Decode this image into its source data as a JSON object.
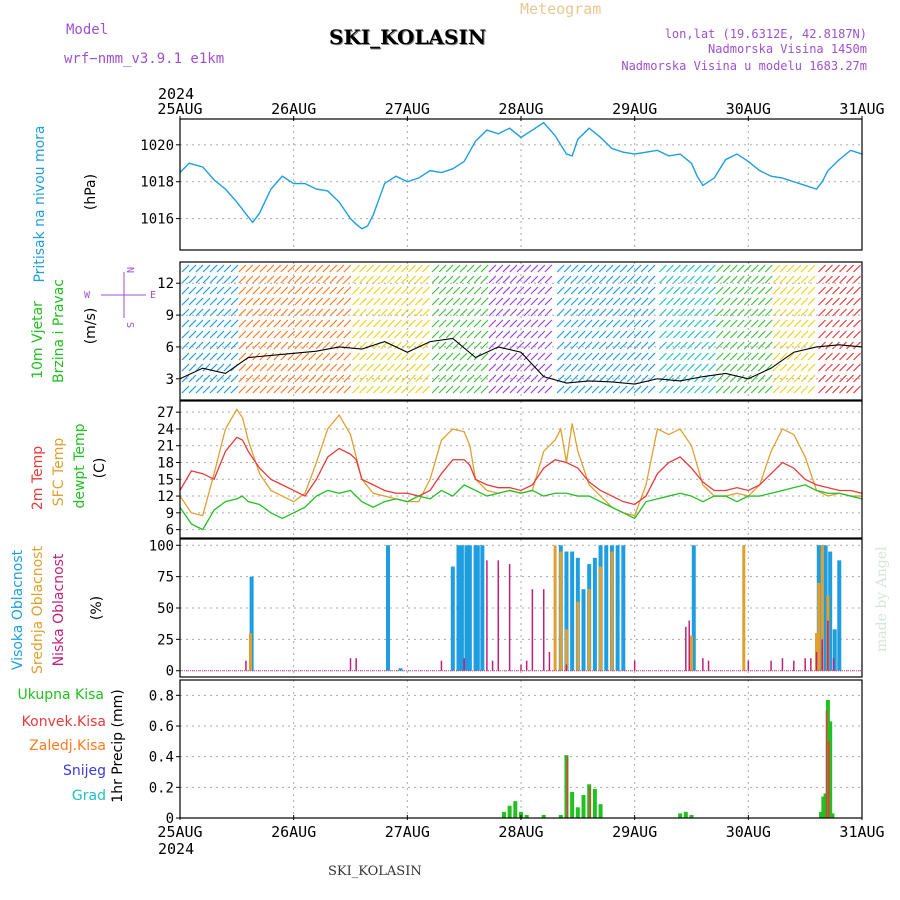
{
  "header": {
    "model_label": "Model",
    "model_name": "wrf−nmm_v3.9.1  e1km",
    "station": "SKI_KOLASIN",
    "meteogram": "Meteogram",
    "lonlat": "lon,lat (19.6312E, 42.8187N)",
    "altitude": "Nadmorska Visina 1450m",
    "model_altitude": "Nadmorska Visina u modelu 1683.27m",
    "year_top": "2024",
    "year_bottom": "2024",
    "footer_station": "SKI_KOLASIN",
    "credit": "made by Angel"
  },
  "colors": {
    "pressure": "#1e9ee0",
    "temp2m": "#e83a3a",
    "sfc": "#e0a030",
    "dewpt": "#22c022",
    "high_cloud": "#1e9ee0",
    "mid_cloud": "#e0a030",
    "low_cloud": "#c0207a",
    "purple": "#a050d0",
    "total_precip": "#22c022",
    "conv_precip": "#e83a3a",
    "frozen_precip": "#ff7a20",
    "snow": "#3a3ae0",
    "hail": "#20c0c0"
  },
  "chart_data": [
    {
      "type": "line",
      "title": "Pritisak na nivou mora",
      "ylabel": "(hPa)",
      "yticks": [
        1016,
        1018,
        1020
      ],
      "ylim": [
        1014.3,
        1021.4
      ],
      "x_unit": "days since 25AUG 00Z",
      "series": [
        {
          "name": "Pritisak na nivou mora",
          "x": [
            0,
            0.08,
            0.2,
            0.3,
            0.4,
            0.5,
            0.6,
            0.64,
            0.7,
            0.8,
            0.9,
            1.0,
            1.1,
            1.2,
            1.3,
            1.4,
            1.5,
            1.55,
            1.6,
            1.65,
            1.7,
            1.8,
            1.9,
            2.0,
            2.1,
            2.2,
            2.3,
            2.4,
            2.5,
            2.6,
            2.7,
            2.8,
            2.9,
            3.0,
            3.1,
            3.2,
            3.3,
            3.4,
            3.45,
            3.5,
            3.6,
            3.7,
            3.8,
            3.9,
            4.0,
            4.1,
            4.2,
            4.3,
            4.4,
            4.5,
            4.55,
            4.6,
            4.7,
            4.8,
            4.9,
            5.0,
            5.1,
            5.2,
            5.3,
            5.4,
            5.5,
            5.6,
            5.65,
            5.7,
            5.8,
            5.9,
            6.0
          ],
          "values": [
            1018.5,
            1019.0,
            1018.8,
            1018.1,
            1017.6,
            1016.9,
            1016.1,
            1015.8,
            1016.3,
            1017.6,
            1018.3,
            1017.9,
            1017.9,
            1017.6,
            1017.5,
            1016.9,
            1016.0,
            1015.7,
            1015.45,
            1015.6,
            1016.2,
            1017.9,
            1018.3,
            1018.0,
            1018.2,
            1018.6,
            1018.5,
            1018.7,
            1019.1,
            1020.2,
            1020.8,
            1020.6,
            1020.9,
            1020.4,
            1020.8,
            1021.2,
            1020.5,
            1019.5,
            1019.4,
            1020.3,
            1020.9,
            1020.4,
            1019.8,
            1019.6,
            1019.5,
            1019.6,
            1019.7,
            1019.4,
            1019.5,
            1019.0,
            1018.3,
            1017.8,
            1018.2,
            1019.2,
            1019.5,
            1019.1,
            1018.6,
            1018.3,
            1018.2,
            1018.0,
            1017.8,
            1017.6,
            1018.0,
            1018.6,
            1019.2,
            1019.7,
            1019.5
          ]
        }
      ]
    },
    {
      "type": "line",
      "title": "10m Vjetar Brzina i Pravac",
      "ylabel": "(m/s)",
      "yticks": [
        3,
        6,
        9,
        12
      ],
      "ylim": [
        1.0,
        14.0
      ],
      "compass": {
        "north": "N",
        "south": "S",
        "east": "E",
        "west": "W"
      },
      "series": [
        {
          "name": "brzina",
          "x": [
            0,
            0.2,
            0.4,
            0.6,
            0.8,
            1.0,
            1.2,
            1.4,
            1.6,
            1.8,
            2.0,
            2.2,
            2.4,
            2.6,
            2.8,
            3.0,
            3.2,
            3.4,
            3.6,
            3.8,
            4.0,
            4.2,
            4.4,
            4.6,
            4.8,
            5.0,
            5.2,
            5.4,
            5.6,
            5.8,
            6.0
          ],
          "values": [
            3.0,
            4.0,
            3.5,
            5.0,
            5.2,
            5.4,
            5.6,
            6.0,
            5.8,
            6.5,
            5.5,
            6.5,
            6.8,
            5.0,
            6.0,
            5.5,
            3.2,
            2.6,
            2.8,
            2.7,
            2.5,
            3.0,
            2.8,
            3.2,
            3.5,
            3.0,
            4.0,
            5.5,
            6.0,
            6.2,
            6.0
          ]
        }
      ],
      "barb_bands": [
        {
          "from": 0.0,
          "to": 0.5,
          "color": "#1e9ee0"
        },
        {
          "from": 0.5,
          "to": 1.5,
          "color": "#ff7a20"
        },
        {
          "from": 1.5,
          "to": 2.2,
          "color": "#f0d020"
        },
        {
          "from": 2.2,
          "to": 2.7,
          "color": "#40c040"
        },
        {
          "from": 2.7,
          "to": 3.3,
          "color": "#9a40e0"
        },
        {
          "from": 3.3,
          "to": 4.2,
          "color": "#1e9ee0"
        },
        {
          "from": 4.2,
          "to": 4.7,
          "color": "#20c0c0"
        },
        {
          "from": 4.7,
          "to": 5.2,
          "color": "#40c040"
        },
        {
          "from": 5.2,
          "to": 5.6,
          "color": "#f0d020"
        },
        {
          "from": 5.6,
          "to": 6.0,
          "color": "#e83a3a"
        }
      ]
    },
    {
      "type": "line",
      "title": "2m Temp / SFC Temp / dewpt Temp",
      "ylabel": "(C)",
      "yticks": [
        6,
        9,
        12,
        15,
        18,
        21,
        24,
        27
      ],
      "ylim": [
        4.5,
        29.0
      ],
      "series": [
        {
          "name": "2m Temp",
          "x": [
            0,
            0.1,
            0.2,
            0.3,
            0.4,
            0.5,
            0.55,
            0.6,
            0.7,
            0.8,
            0.9,
            1.0,
            1.1,
            1.2,
            1.3,
            1.4,
            1.5,
            1.55,
            1.6,
            1.7,
            1.8,
            1.9,
            2.0,
            2.1,
            2.2,
            2.3,
            2.4,
            2.5,
            2.55,
            2.6,
            2.7,
            2.8,
            2.9,
            3.0,
            3.1,
            3.2,
            3.3,
            3.4,
            3.5,
            3.6,
            3.7,
            3.8,
            3.9,
            4.0,
            4.1,
            4.2,
            4.3,
            4.4,
            4.5,
            4.6,
            4.7,
            4.8,
            4.9,
            5.0,
            5.1,
            5.2,
            5.3,
            5.4,
            5.5,
            5.6,
            5.7,
            5.8,
            5.9,
            6.0
          ],
          "values": [
            13,
            16.5,
            16,
            15,
            20,
            22.5,
            22,
            20,
            17,
            15,
            14,
            13,
            12,
            15,
            19,
            20.5,
            19.5,
            18.5,
            15,
            14,
            13,
            12.5,
            12.5,
            12,
            13,
            16,
            18.5,
            18.5,
            17.5,
            15,
            14,
            13.5,
            13.5,
            13,
            14,
            17,
            18.5,
            18,
            17,
            14.5,
            13,
            12,
            11,
            10.5,
            12,
            16,
            18,
            19,
            17,
            14.5,
            13,
            13,
            13.5,
            13,
            14,
            16,
            18,
            17,
            15,
            14,
            13.5,
            13,
            13,
            12.5
          ]
        },
        {
          "name": "SFC Temp",
          "x": [
            0,
            0.1,
            0.2,
            0.3,
            0.4,
            0.5,
            0.55,
            0.6,
            0.7,
            0.8,
            0.9,
            1.0,
            1.1,
            1.2,
            1.3,
            1.4,
            1.5,
            1.55,
            1.6,
            1.7,
            1.8,
            1.9,
            2.0,
            2.1,
            2.2,
            2.3,
            2.4,
            2.5,
            2.55,
            2.6,
            2.7,
            2.8,
            2.9,
            3.0,
            3.1,
            3.2,
            3.3,
            3.35,
            3.4,
            3.45,
            3.5,
            3.6,
            3.7,
            3.8,
            3.9,
            4.0,
            4.1,
            4.2,
            4.3,
            4.4,
            4.5,
            4.6,
            4.7,
            4.8,
            4.9,
            5.0,
            5.1,
            5.2,
            5.3,
            5.4,
            5.5,
            5.6,
            5.7,
            5.8,
            5.9,
            6.0
          ],
          "values": [
            12,
            9,
            8.5,
            16,
            24,
            27.5,
            26,
            22,
            16,
            13,
            12,
            11,
            12.5,
            18,
            24,
            26.5,
            23,
            19,
            15,
            12.5,
            12,
            11.5,
            11,
            11,
            15,
            22,
            24,
            23.5,
            21,
            15,
            13,
            12.5,
            13,
            12.5,
            13,
            20,
            22,
            24,
            18,
            25,
            20,
            14,
            12,
            10,
            9,
            8.5,
            14,
            24,
            23,
            24,
            21,
            14,
            12,
            12,
            12.5,
            12,
            14,
            20,
            24,
            23,
            19,
            13,
            12,
            12.5,
            12,
            12
          ]
        },
        {
          "name": "dewpt Temp",
          "x": [
            0,
            0.1,
            0.2,
            0.3,
            0.4,
            0.5,
            0.55,
            0.6,
            0.7,
            0.8,
            0.9,
            1.0,
            1.1,
            1.2,
            1.3,
            1.4,
            1.5,
            1.6,
            1.7,
            1.8,
            1.9,
            2.0,
            2.1,
            2.2,
            2.3,
            2.4,
            2.5,
            2.6,
            2.7,
            2.8,
            2.9,
            3.0,
            3.1,
            3.2,
            3.3,
            3.4,
            3.5,
            3.6,
            3.7,
            3.8,
            3.9,
            4.0,
            4.1,
            4.2,
            4.3,
            4.4,
            4.5,
            4.6,
            4.7,
            4.8,
            4.9,
            5.0,
            5.1,
            5.2,
            5.3,
            5.4,
            5.5,
            5.6,
            5.7,
            5.8,
            5.9,
            6.0
          ],
          "values": [
            10,
            7,
            6,
            9.5,
            11,
            11.5,
            12,
            11,
            10.5,
            9,
            8,
            9,
            10,
            12,
            13,
            12.5,
            13,
            11,
            10,
            11,
            11.5,
            11,
            12,
            11.5,
            13,
            12,
            14,
            13,
            12,
            12.5,
            13,
            12.5,
            13,
            12,
            12.5,
            12.5,
            12,
            12,
            11,
            10,
            9,
            8,
            11,
            11.5,
            12,
            12.5,
            12,
            11,
            12,
            12,
            11,
            12,
            12,
            12.5,
            13,
            13.5,
            14,
            13,
            12.5,
            12.5,
            12,
            11.5
          ]
        }
      ]
    },
    {
      "type": "bar",
      "title": "Visoka Oblacnost / Srednja Oblacnost / Niska Oblacnost",
      "ylabel": "(%)",
      "yticks": [
        0,
        25,
        50,
        75,
        100
      ],
      "ylim": [
        -5,
        105
      ],
      "series": [
        {
          "name": "Visoka Oblacnost",
          "x": [
            0.63,
            1.83,
            1.94,
            2.4,
            2.45,
            2.48,
            2.52,
            2.55,
            2.6,
            2.62,
            2.66,
            3.35,
            3.4,
            3.45,
            3.5,
            3.55,
            3.6,
            3.65,
            3.7,
            3.75,
            3.8,
            3.85,
            3.9,
            4.52,
            5.62,
            5.63,
            5.68,
            5.72,
            5.76,
            5.8
          ],
          "values": [
            75,
            100,
            2,
            83,
            100,
            100,
            100,
            100,
            100,
            100,
            100,
            100,
            95,
            95,
            90,
            65,
            85,
            90,
            100,
            100,
            100,
            100,
            100,
            100,
            100,
            100,
            100,
            95,
            33,
            88
          ]
        },
        {
          "name": "Srednja Oblacnost",
          "x": [
            0.62,
            3.3,
            3.35,
            3.4,
            3.5,
            3.6,
            3.7,
            3.8,
            4.5,
            4.96,
            5.6,
            5.62,
            5.65,
            5.7
          ],
          "values": [
            30,
            100,
            95,
            33,
            55,
            65,
            83,
            95,
            28,
            100,
            30,
            70,
            100,
            60
          ]
        },
        {
          "name": "Niska Oblacnost",
          "x": [
            0.58,
            1.5,
            1.55,
            2.3,
            2.5,
            2.7,
            2.75,
            2.8,
            2.9,
            3.0,
            3.05,
            3.1,
            3.2,
            3.25,
            3.4,
            4.0,
            4.45,
            4.48,
            4.6,
            4.65,
            5.0,
            5.2,
            5.3,
            5.4,
            5.5,
            5.55,
            5.6,
            5.65,
            5.7,
            5.75
          ],
          "values": [
            8,
            10,
            10,
            8,
            10,
            88,
            8,
            88,
            85,
            5,
            8,
            65,
            65,
            15,
            5,
            8,
            35,
            40,
            10,
            8,
            8,
            8,
            10,
            8,
            10,
            10,
            15,
            25,
            40,
            10
          ]
        }
      ]
    },
    {
      "type": "bar",
      "title": "1hr Precip",
      "ylabel": "1hr Precip (mm)",
      "yticks": [
        0,
        0.2,
        0.4,
        0.6,
        0.8
      ],
      "ylim": [
        0,
        0.9
      ],
      "series": [
        {
          "name": "Ukupna Kisa",
          "x": [
            2.85,
            2.9,
            2.95,
            3.0,
            3.05,
            3.2,
            3.35,
            3.4,
            3.45,
            3.5,
            3.55,
            3.6,
            3.65,
            3.7,
            4.4,
            4.45,
            4.5,
            5.64,
            5.66,
            5.68,
            5.7,
            5.72,
            5.74
          ],
          "values": [
            0.04,
            0.08,
            0.11,
            0.04,
            0.02,
            0.02,
            0.02,
            0.41,
            0.17,
            0.07,
            0.15,
            0.22,
            0.19,
            0.09,
            0.03,
            0.04,
            0.02,
            0.04,
            0.14,
            0.16,
            0.77,
            0.63,
            0.03
          ]
        },
        {
          "name": "Konvek.Kisa",
          "x": [
            3.41,
            3.61,
            5.69,
            5.71
          ],
          "values": [
            0.4,
            0.2,
            0.7,
            0.5
          ]
        },
        {
          "name": "Zaledj.Kisa",
          "x": [],
          "values": []
        },
        {
          "name": "Snijeg",
          "x": [],
          "values": []
        },
        {
          "name": "Grad",
          "x": [],
          "values": []
        }
      ]
    }
  ],
  "axis": {
    "date_labels": [
      "25AUG",
      "26AUG",
      "27AUG",
      "28AUG",
      "29AUG",
      "30AUG",
      "31AUG"
    ]
  },
  "labels": {
    "pressure_title": "Pritisak na nivou mora",
    "pressure_unit": "(hPa)",
    "wind_title_1": "10m Vjetar",
    "wind_title_2": "Brzina i Pravac",
    "wind_unit": "(m/s)",
    "temp_2m": "2m Temp",
    "temp_sfc": "SFC Temp",
    "temp_dew": "dewpt Temp",
    "temp_unit": "(C)",
    "cloud_high": "Visoka Oblacnost",
    "cloud_mid": "Srednja Oblacnost",
    "cloud_low": "Niska Oblacnost",
    "cloud_unit": "(%)",
    "precip_unit": "1hr Precip (mm)",
    "legend_total": "Ukupna Kisa",
    "legend_conv": "Konvek.Kisa",
    "legend_frozen": "Zaledj.Kisa",
    "legend_snow": "Snijeg",
    "legend_hail": "Grad"
  }
}
